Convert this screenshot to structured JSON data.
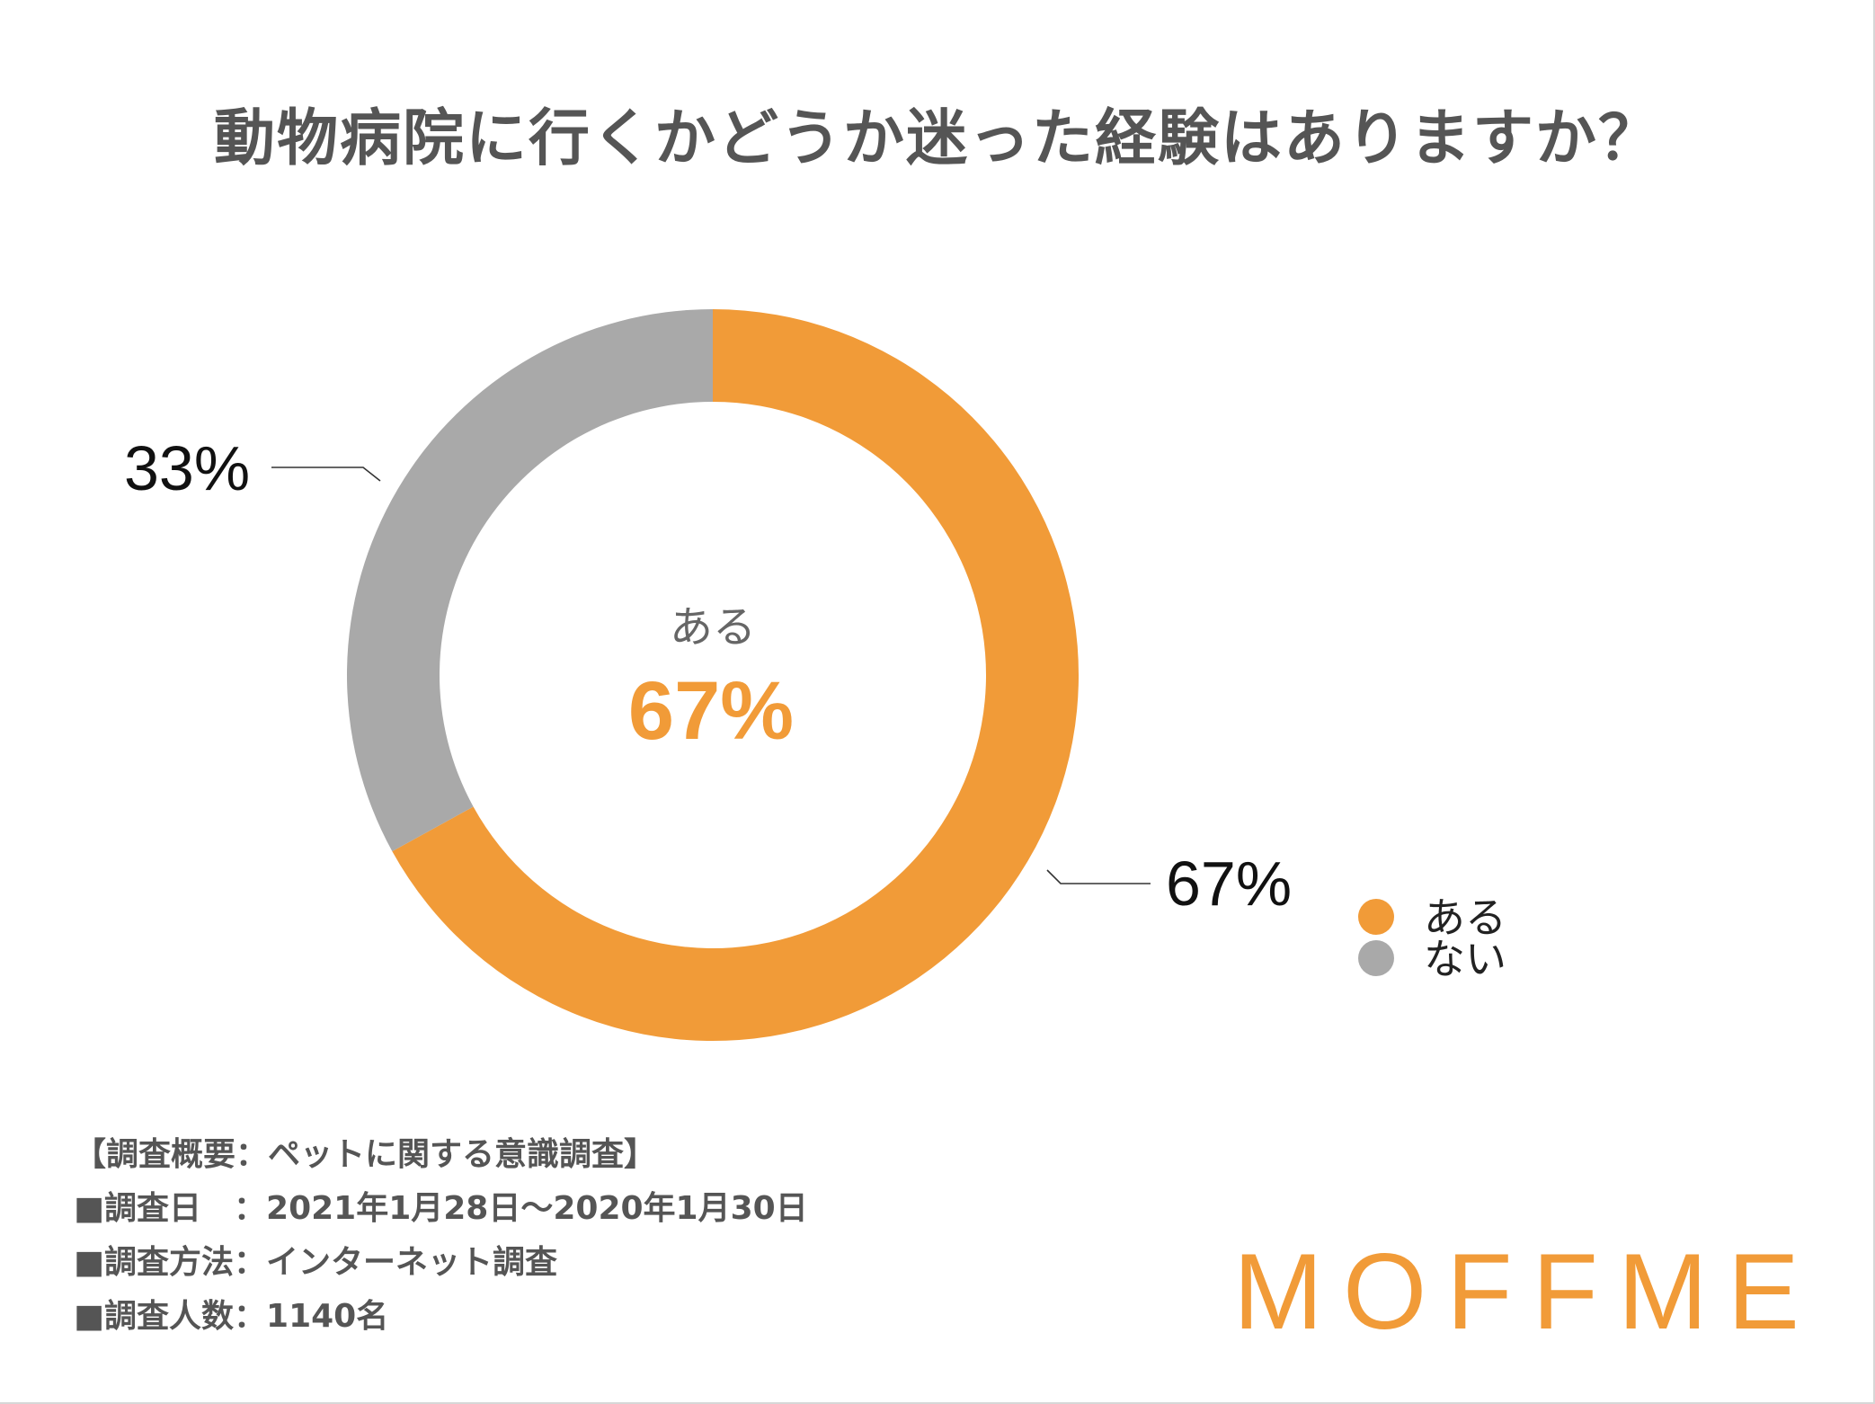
{
  "chart_data": {
    "type": "pie",
    "title": "動物病院に行くかどうか迷った経験はありますか？",
    "categories": [
      "ある",
      "ない"
    ],
    "values": [
      67,
      33
    ],
    "value_labels": [
      "67%",
      "33%"
    ],
    "colors": [
      "#f19b38",
      "#a9a9a9"
    ],
    "center_label": "ある",
    "center_value": "67%",
    "legend_position": "right"
  },
  "footer": {
    "lines": [
      "【調査概要：ペットに関する意識調査】",
      "■調査日　：2021年1月28日〜2020年1月30日",
      "■調査方法：インターネット調査",
      "■調査人数：1140名"
    ]
  },
  "logo": "MOFFME"
}
